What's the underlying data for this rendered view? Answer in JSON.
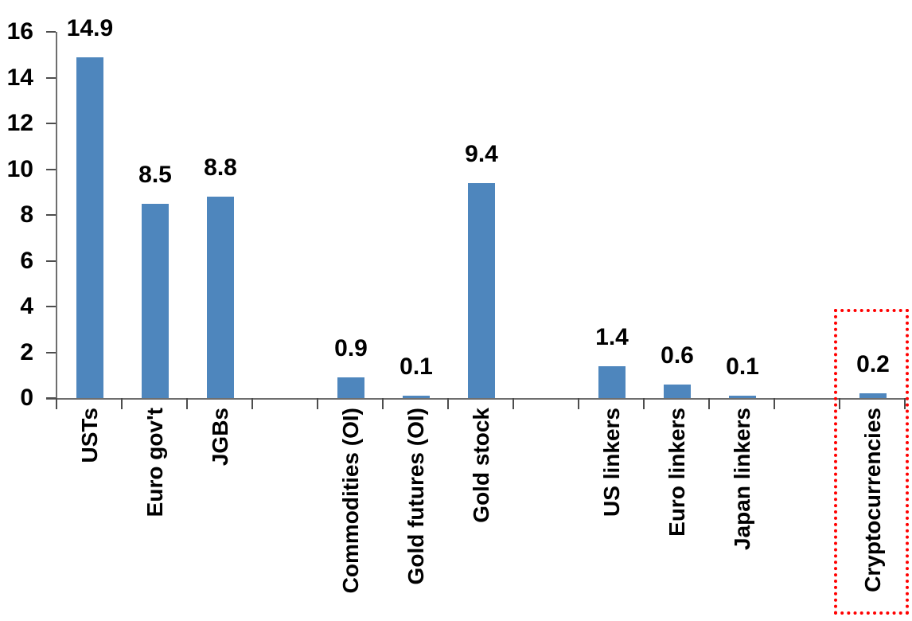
{
  "chart_data": {
    "type": "bar",
    "categories": [
      "USTs",
      "Euro gov't",
      "JGBs",
      "",
      "Commodities (OI)",
      "Gold futures (OI)",
      "Gold stock",
      "",
      "US linkers",
      "Euro linkers",
      "Japan linkers",
      "",
      "Cryptocurrencies"
    ],
    "values": [
      14.9,
      8.5,
      8.8,
      null,
      0.9,
      0.1,
      9.4,
      null,
      1.4,
      0.6,
      0.1,
      null,
      0.2
    ],
    "data_labels": [
      "14.9",
      "8.5",
      "8.8",
      null,
      "0.9",
      "0.1",
      "9.4",
      null,
      "1.4",
      "0.6",
      "0.1",
      null,
      "0.2"
    ],
    "ytick_labels": [
      "0",
      "2",
      "4",
      "6",
      "8",
      "10",
      "12",
      "14",
      "16"
    ],
    "ylim": [
      0,
      16
    ],
    "xlabel": "",
    "ylabel": "",
    "grid": "off",
    "legend": "none",
    "bar_color": "#4E86BD",
    "axis_color": "#6e6e6e",
    "tick_color": "#4d4d4d",
    "text_color": "#000000",
    "highlight": {
      "category": "Cryptocurrencies",
      "value_label": "0.2",
      "border_color": "#FF0000",
      "border_style": "dotted"
    }
  }
}
